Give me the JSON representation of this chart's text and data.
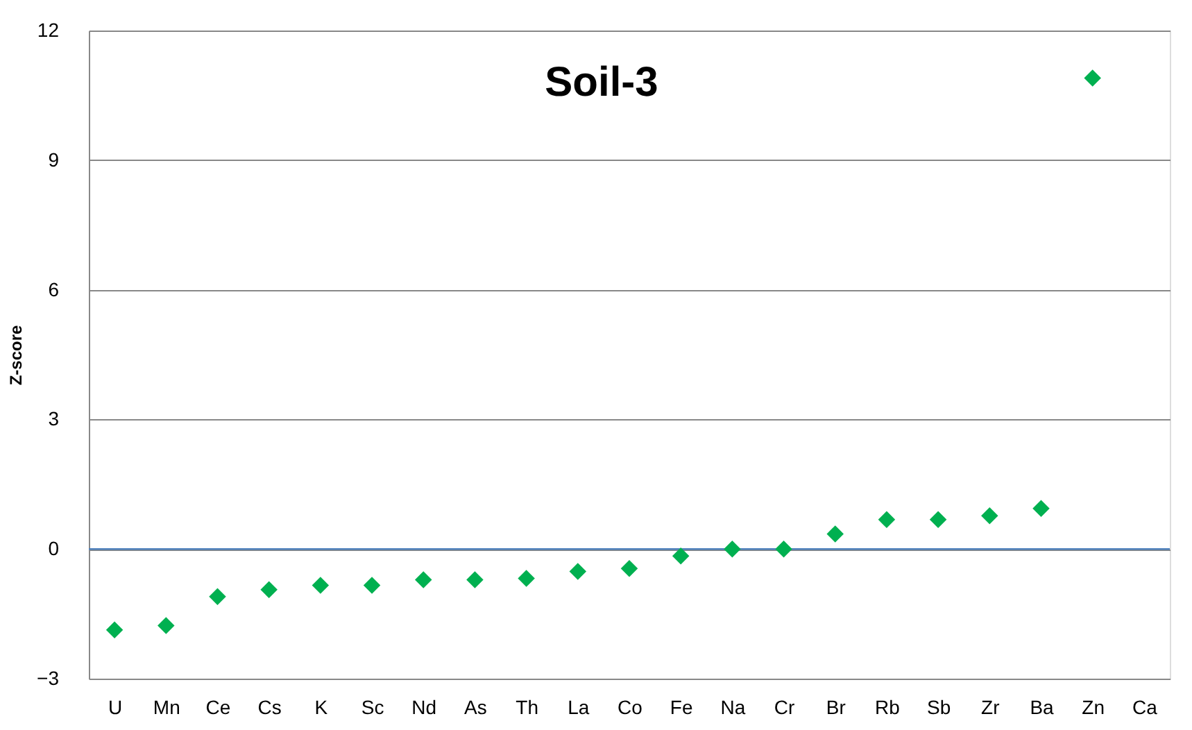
{
  "chart_data": {
    "type": "scatter",
    "title": "Soil-3",
    "ylabel": "Z-score",
    "categories": [
      "U",
      "Mn",
      "Ce",
      "Cs",
      "K",
      "Sc",
      "Nd",
      "As",
      "Th",
      "La",
      "Co",
      "Fe",
      "Na",
      "Cr",
      "Br",
      "Rb",
      "Sb",
      "Zr",
      "Ba",
      "Zn",
      "Ca"
    ],
    "series": [
      {
        "color": "#00b050",
        "values": [
          -1.87,
          -1.77,
          -1.1,
          -0.94,
          -0.84,
          -0.84,
          -0.71,
          -0.71,
          -0.68,
          -0.52,
          -0.45,
          -0.16,
          0,
          0,
          0.35,
          0.68,
          0.68,
          0.77,
          0.94,
          10.9,
          null
        ]
      }
    ],
    "ylim": [
      -3,
      12
    ],
    "yticks": [
      -3,
      0,
      3,
      6,
      9,
      12
    ],
    "grid": "y",
    "marker": "diamond",
    "ref_lines": [
      {
        "axis": "y",
        "value": 0,
        "color": "#4f81bd"
      }
    ]
  }
}
